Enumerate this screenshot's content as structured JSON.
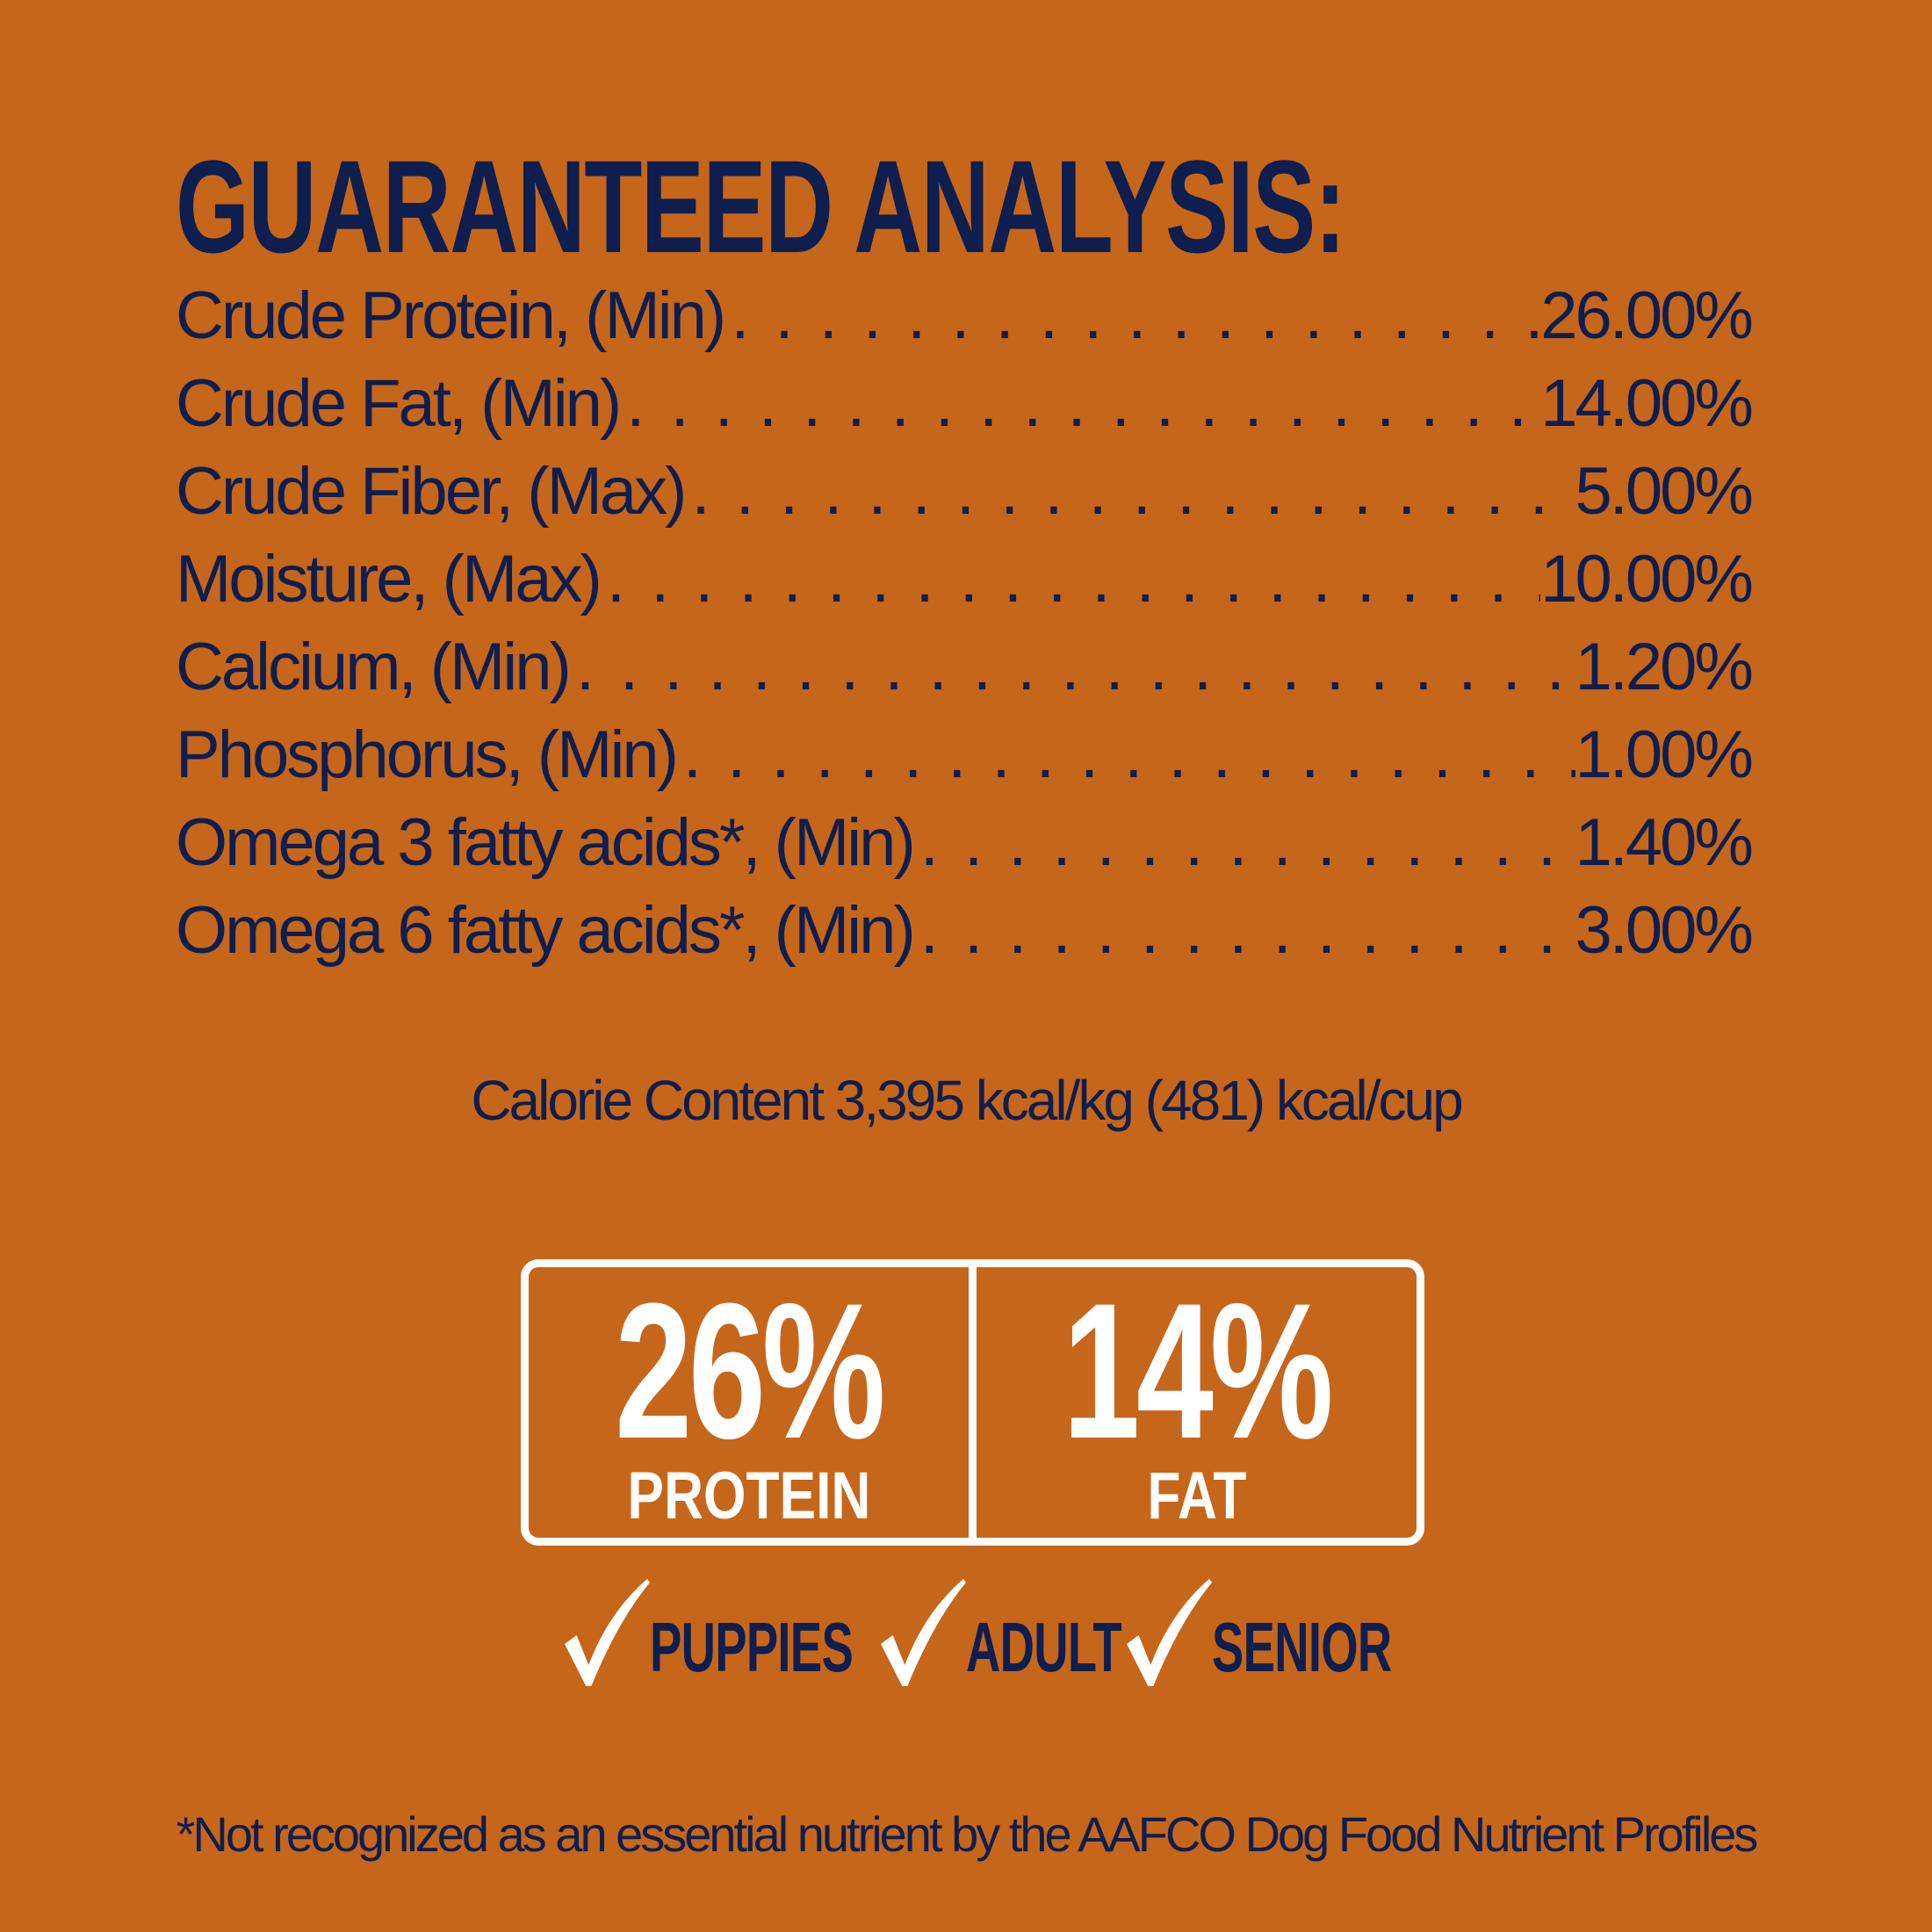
{
  "title": "GUARANTEED ANALYSIS:",
  "rows": [
    {
      "label": "Crude Protein, (Min)",
      "value": "26.00%"
    },
    {
      "label": "Crude Fat, (Min)",
      "value": "14.00%"
    },
    {
      "label": "Crude Fiber, (Max)",
      "value": "5.00%"
    },
    {
      "label": "Moisture, (Max)",
      "value": "10.00%"
    },
    {
      "label": "Calcium, (Min)",
      "value": "1.20%"
    },
    {
      "label": "Phosphorus, (Min)",
      "value": "1.00%"
    },
    {
      "label": "Omega 3 fatty acids*, (Min)",
      "value": "1.40%"
    },
    {
      "label": "Omega 6 fatty acids*, (Min)",
      "value": "3.00%"
    }
  ],
  "calorie": "Calorie Content 3,395 kcal/kg (481) kcal/cup",
  "highlights": [
    {
      "value": "26%",
      "label": "PROTEIN"
    },
    {
      "value": "14%",
      "label": "FAT"
    }
  ],
  "life_stages": [
    {
      "icon": "checkmark-icon",
      "label": "PUPPIES"
    },
    {
      "icon": "checkmark-icon",
      "label": "ADULT"
    },
    {
      "icon": "checkmark-icon",
      "label": "SENIOR"
    }
  ],
  "footnote": "*Not recognized as an essential nutrient by the AAFCO Dog Food Nutrient Profiles",
  "colors": {
    "background": "#C6661B",
    "text": "#0E1E4E",
    "accent": "#FFFFFF"
  }
}
